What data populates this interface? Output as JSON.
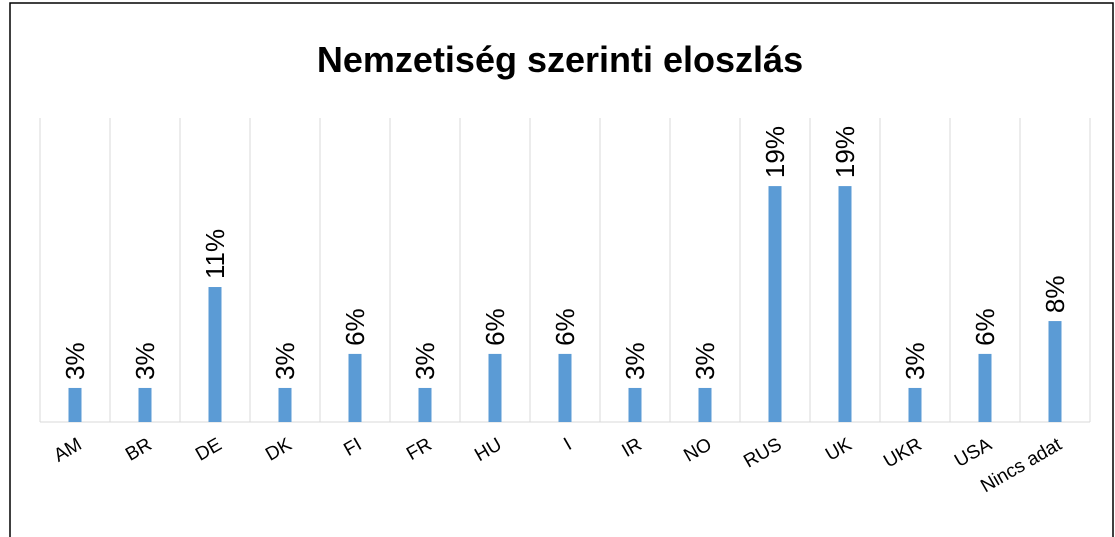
{
  "chart_data": {
    "type": "bar",
    "title": "Nemzetiség szerinti eloszlás",
    "categories": [
      "AM",
      "BR",
      "DE",
      "DK",
      "FI",
      "FR",
      "HU",
      "I",
      "IR",
      "NO",
      "RUS",
      "UK",
      "UKR",
      "USA",
      "Nincs adat"
    ],
    "values": [
      2.8,
      2.8,
      11.1,
      2.8,
      5.6,
      2.8,
      5.6,
      5.6,
      2.8,
      2.8,
      19.4,
      19.4,
      2.8,
      5.6,
      8.3
    ],
    "value_labels": [
      "3%",
      "3%",
      "11%",
      "3%",
      "6%",
      "3%",
      "6%",
      "6%",
      "3%",
      "3%",
      "19%",
      "19%",
      "3%",
      "6%",
      "8%"
    ],
    "color": "#5b9bd5",
    "ylim": [
      0,
      25
    ],
    "grid": true
  }
}
